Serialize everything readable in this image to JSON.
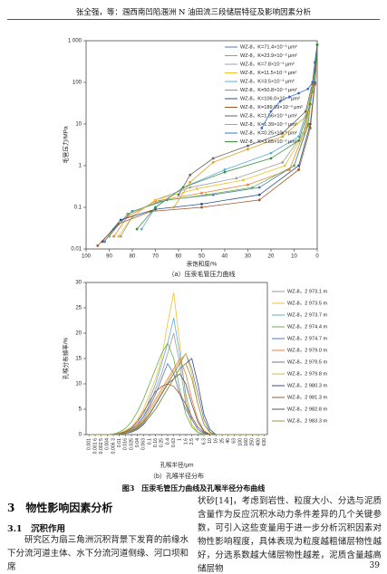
{
  "header": "张全强，等：涠西南凹陷涠洲 N 油田流三段储层特征及影响因素分析",
  "chart_data": [
    {
      "type": "line",
      "title": "（a）压汞毛管压力曲线",
      "xlabel": "汞饱和度/%",
      "ylabel": "毛管压力/MPa",
      "xlim": [
        100,
        0
      ],
      "xticks": [
        100,
        90,
        80,
        70,
        60,
        50,
        40,
        30,
        20,
        10,
        0
      ],
      "ylim": [
        0.01,
        1000
      ],
      "log_scale": "y",
      "yticks": [
        0.01,
        0.1,
        1,
        10,
        100,
        {
          "value": 1000,
          "label": "1 000"
        }
      ],
      "legend": "upper right",
      "series": [
        {
          "name": "WZ-8，K=71.4×10⁻³ μm²",
          "color": "#4a78c2",
          "x": [
            0,
            2,
            4,
            10,
            25,
            45,
            65,
            80,
            88,
            92
          ],
          "values": [
            800,
            100,
            10,
            1,
            0.3,
            0.2,
            0.15,
            0.08,
            0.03,
            0.015
          ]
        },
        {
          "name": "WZ-8，K=23.9×10⁻³ μm²",
          "color": "#e8823a",
          "x": [
            0,
            2,
            5,
            12,
            30,
            50,
            70,
            82,
            88
          ],
          "values": [
            800,
            80,
            8,
            0.8,
            0.35,
            0.22,
            0.14,
            0.06,
            0.02
          ]
        },
        {
          "name": "WZ-8，K=7.8×10⁻³ μm²",
          "color": "#a0a0a0",
          "x": [
            0,
            2,
            6,
            15,
            35,
            55,
            70,
            80,
            85
          ],
          "values": [
            800,
            60,
            6,
            1.2,
            0.5,
            0.3,
            0.15,
            0.06,
            0.02
          ]
        },
        {
          "name": "WZ-8，K=11.5×10⁻³ μm²",
          "color": "#f2c12e",
          "x": [
            0,
            2,
            5,
            14,
            32,
            52,
            70,
            80,
            86
          ],
          "values": [
            800,
            70,
            7,
            1,
            0.45,
            0.28,
            0.15,
            0.06,
            0.02
          ]
        },
        {
          "name": "WZ-8，K=3.5×10⁻³ μm²",
          "color": "#5fa8dc",
          "x": [
            0,
            1,
            3,
            8,
            20,
            40,
            58,
            70,
            76
          ],
          "values": [
            800,
            200,
            40,
            5,
            2,
            0.8,
            0.3,
            0.1,
            0.03
          ]
        },
        {
          "name": "WZ-8，K=50.8×10⁻³ μm²",
          "color": "#6ab04c",
          "x": [
            0,
            2,
            4,
            10,
            28,
            48,
            68,
            82,
            90
          ],
          "values": [
            800,
            90,
            9,
            1,
            0.3,
            0.2,
            0.14,
            0.07,
            0.02
          ]
        },
        {
          "name": "WZ-8，K=106.0×10⁻³ μm²",
          "color": "#2d4f8f",
          "x": [
            0,
            1,
            3,
            8,
            25,
            50,
            70,
            85,
            93
          ],
          "values": [
            800,
            100,
            10,
            1,
            0.2,
            0.12,
            0.09,
            0.05,
            0.015
          ]
        },
        {
          "name": "WZ-8，K=189.89×10⁻³ μm²",
          "color": "#a4572a",
          "x": [
            0,
            1,
            3,
            8,
            25,
            50,
            72,
            86,
            95
          ],
          "values": [
            800,
            90,
            8,
            0.8,
            0.15,
            0.1,
            0.08,
            0.04,
            0.012
          ]
        },
        {
          "name": "WZ-8，K=1.56×10⁻³ μm²",
          "color": "#666666",
          "x": [
            0,
            1,
            2,
            5,
            15,
            30,
            45,
            55,
            60
          ],
          "values": [
            800,
            300,
            100,
            20,
            6,
            3,
            1.5,
            0.6,
            0.2
          ]
        },
        {
          "name": "WZ-8，K=1.39×10⁻³ μm²",
          "color": "#d9a520",
          "x": [
            0,
            1,
            2,
            5,
            15,
            30,
            45,
            55,
            62
          ],
          "values": [
            800,
            300,
            80,
            15,
            5,
            2.5,
            1.2,
            0.4,
            0.1
          ]
        },
        {
          "name": "WZ-8，K=0.25×10⁻³ μm²",
          "color": "#3c6fd1",
          "x": [
            0,
            1,
            2,
            4,
            8,
            12,
            16,
            20,
            24
          ],
          "values": [
            800,
            300,
            100,
            70,
            55,
            45,
            35,
            20,
            8
          ]
        },
        {
          "name": "WZ-8，K=3.65×10⁻³ μm²",
          "color": "#3f8f3f",
          "x": [
            0,
            1,
            3,
            8,
            20,
            40,
            58,
            70,
            78
          ],
          "values": [
            800,
            180,
            30,
            4,
            1.5,
            0.7,
            0.3,
            0.1,
            0.03
          ]
        }
      ]
    },
    {
      "type": "line",
      "title": "（b）孔喉半径分布",
      "xlabel": "孔喉半径/μm",
      "ylabel": "孔喉分布频率/%",
      "categories": [
        "0.001",
        "0.001 6",
        "0.002 5",
        "0.004",
        "0.006 3",
        "0.01",
        "0.016",
        "0.025",
        "0.04",
        "0.063",
        "0.1",
        "0.16",
        "0.25",
        "0.4",
        "0.63",
        "1",
        "1.6",
        "2.5",
        "4",
        "6.3",
        "10",
        "16",
        "25",
        "40",
        "63",
        "100",
        "160",
        "250",
        "400",
        "630"
      ],
      "ylim": [
        0,
        30
      ],
      "yticks": [
        0,
        5,
        10,
        15,
        20,
        25,
        30
      ],
      "legend": "right",
      "series": [
        {
          "name": "WZ-8，2 973.1 m",
          "color": "#9a9a9a",
          "values": [
            0,
            0,
            0,
            0,
            0,
            0.2,
            0.5,
            1,
            2,
            3.5,
            6,
            9,
            12,
            16,
            20,
            14,
            6,
            2,
            0.5,
            0,
            0,
            0,
            0,
            0,
            0,
            0,
            0,
            0,
            0,
            0
          ]
        },
        {
          "name": "WZ-8，2 973.5 m",
          "color": "#f2c12e",
          "values": [
            0,
            0,
            0,
            0,
            0,
            0.3,
            0.8,
            1.5,
            3,
            5,
            8,
            11,
            15,
            22,
            28,
            18,
            7,
            2,
            0.5,
            0,
            0,
            0,
            0,
            0,
            0,
            0,
            0,
            0,
            0,
            0
          ]
        },
        {
          "name": "WZ-8，2 973.7 m",
          "color": "#5fa8dc",
          "values": [
            0,
            0,
            0,
            0,
            0,
            0.2,
            0.6,
            1.2,
            2.5,
            4,
            7,
            10,
            14,
            18,
            23,
            16,
            8,
            3,
            1,
            0.2,
            0,
            0,
            0,
            0,
            0,
            0,
            0,
            0,
            0,
            0
          ]
        },
        {
          "name": "WZ-8，2 974.4 m",
          "color": "#6ab04c",
          "values": [
            0,
            0,
            0,
            0,
            0.1,
            0.5,
            1.2,
            2.5,
            4.5,
            7,
            10,
            13,
            16,
            18,
            15,
            9,
            4,
            1.5,
            0.4,
            0,
            0,
            0,
            0,
            0,
            0,
            0,
            0,
            0,
            0,
            0
          ]
        },
        {
          "name": "WZ-8，2 974.7 m",
          "color": "#4a78c2",
          "values": [
            0,
            0,
            0,
            0,
            0,
            0.2,
            0.5,
            1,
            2,
            3.5,
            5.5,
            8,
            11,
            14,
            12,
            8,
            5,
            3,
            1,
            0.2,
            0,
            0,
            0,
            0,
            0,
            0,
            0,
            0,
            0,
            0
          ]
        },
        {
          "name": "WZ-8，2 979.0 m",
          "color": "#e8823a",
          "values": [
            0,
            0,
            0,
            0,
            0,
            0.1,
            0.4,
            0.9,
            1.8,
            3,
            5,
            7,
            9,
            11,
            13,
            15,
            12,
            7,
            3,
            0.8,
            0,
            0,
            0,
            0,
            0,
            0,
            0,
            0,
            0,
            0
          ]
        },
        {
          "name": "WZ-8，2 979.5 m",
          "color": "#777777",
          "values": [
            0,
            0,
            0,
            0,
            0,
            0.1,
            0.3,
            0.7,
            1.5,
            2.5,
            4,
            6,
            8,
            10,
            12,
            14,
            16,
            13,
            8,
            3,
            0.5,
            0,
            0,
            0,
            0,
            0,
            0,
            0,
            0,
            0
          ]
        },
        {
          "name": "WZ-8，2 979.8 m",
          "color": "#d9b84a",
          "values": [
            0,
            0,
            0,
            0,
            0,
            0.1,
            0.3,
            0.8,
            1.6,
            2.8,
            4.5,
            6.5,
            8.5,
            10.5,
            12.5,
            14.5,
            16,
            12,
            6,
            2,
            0.3,
            0,
            0,
            0,
            0,
            0,
            0,
            0,
            0,
            0
          ]
        },
        {
          "name": "WZ-8，2 980.3 m",
          "color": "#2d4f8f",
          "values": [
            0,
            0,
            0,
            0,
            0,
            0.1,
            0.2,
            0.5,
            1,
            2,
            3.5,
            5,
            7,
            9,
            11,
            13,
            14,
            15,
            10,
            4,
            1,
            0,
            0,
            0,
            0,
            0,
            0,
            0,
            0,
            0
          ]
        },
        {
          "name": "WZ-8，2 981.3 m",
          "color": "#a4572a",
          "values": [
            0,
            0,
            0,
            0,
            0,
            0.2,
            0.6,
            1.3,
            2.6,
            4.5,
            6.5,
            8.5,
            9.5,
            10,
            9.5,
            8,
            6,
            3.5,
            1.5,
            0.4,
            0,
            0,
            0,
            0,
            0,
            0,
            0,
            0,
            0,
            0
          ]
        },
        {
          "name": "WZ-8，2 982.8 m",
          "color": "#555555",
          "values": [
            0,
            0,
            0,
            0,
            0,
            0.1,
            0.3,
            0.7,
            1.4,
            2.5,
            4,
            6,
            8,
            10,
            11,
            12,
            10,
            6,
            2.5,
            0.6,
            0,
            0,
            0,
            0,
            0,
            0,
            0,
            0,
            0,
            0
          ]
        },
        {
          "name": "WZ-8，2 983.3 m",
          "color": "#9c9a3c",
          "values": [
            0,
            0,
            0,
            0,
            0,
            0.1,
            0.3,
            0.6,
            1.2,
            2.2,
            3.5,
            5,
            7,
            9,
            11,
            13,
            14,
            11,
            6,
            2,
            0.4,
            0,
            0,
            0,
            0,
            0,
            0,
            0,
            0,
            0
          ]
        }
      ]
    }
  ],
  "figure_caption": "图3　压汞毛管压力曲线及孔喉半径分布曲线",
  "section_heading": "3　物性影响因素分析",
  "subsection_heading": "3.1　沉积作用",
  "left_paragraph": "研究区为扇三角洲沉积背景下发育的前缘水下分流河道主体、水下分流河道侧缘、河口坝和席",
  "right_paragraph": "状砂[14]，考虑到岩性、粒度大小、分选与泥质含量作为反应沉积水动力条件差异的几个关键参数，可引入这些变量用于进一步分析沉积因素对物性影响程度，具体表现为粒度越粗储层物性越好，分选系数越大储层物性越差，泥质含量越高储层物",
  "page_number": "39"
}
